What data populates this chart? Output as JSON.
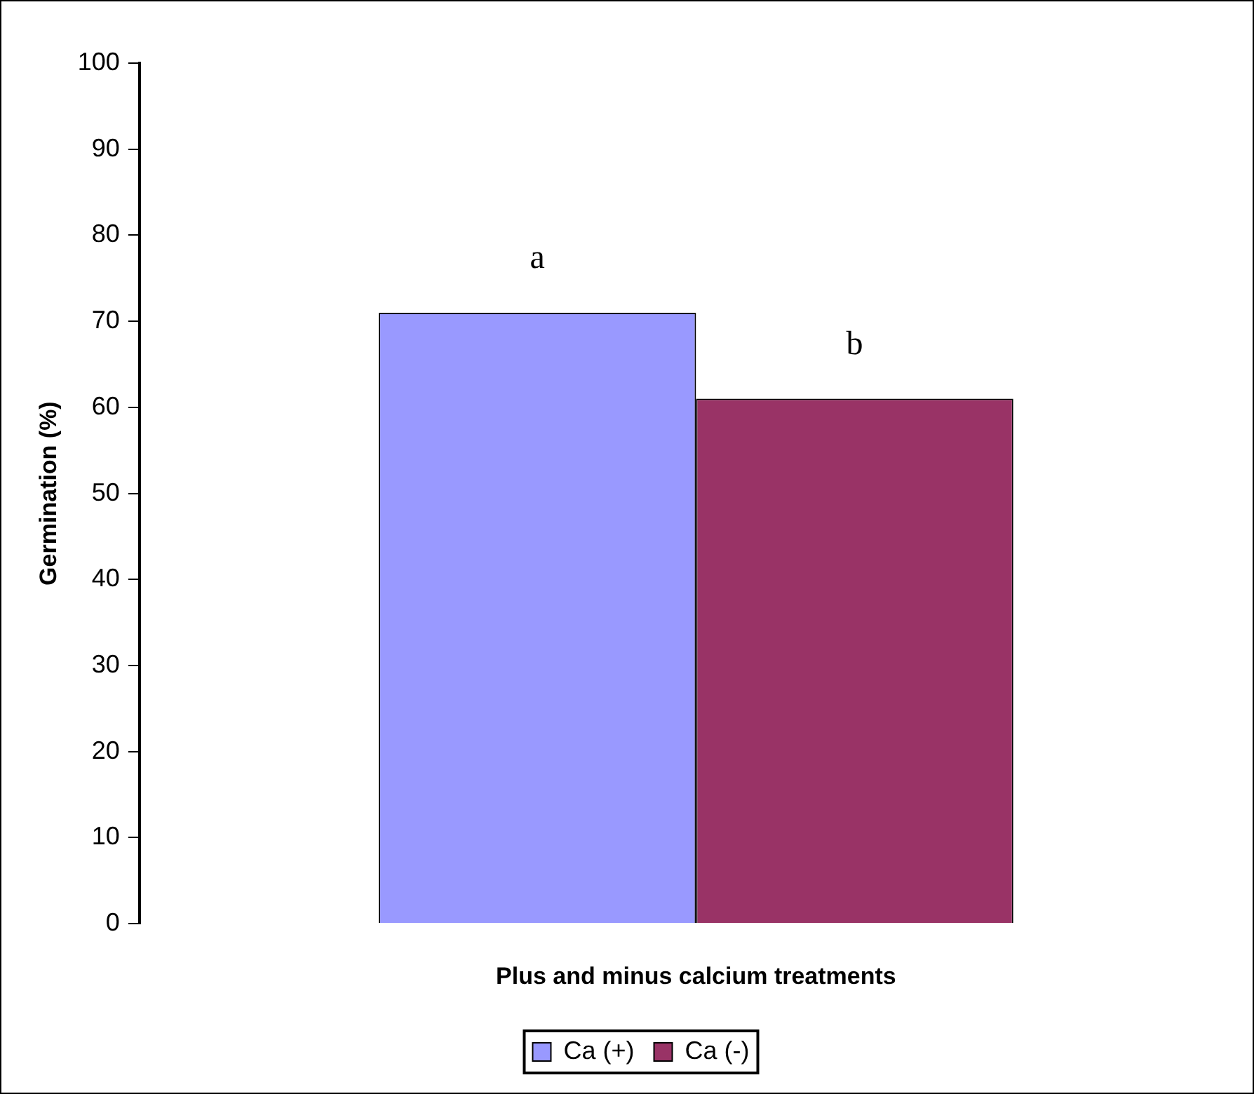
{
  "chart_data": {
    "type": "bar",
    "xlabel": "Plus and minus calcium treatments",
    "ylabel": "Germination (%)",
    "categories": [
      null
    ],
    "series": [
      {
        "name": "Ca (+)",
        "color": "#9999ff",
        "values": [
          71
        ]
      },
      {
        "name": "Ca (-)",
        "color": "#993366",
        "values": [
          61
        ]
      }
    ],
    "annotations": [
      "a",
      "b"
    ],
    "ylim": [
      0,
      100
    ],
    "yticks": [
      0,
      10,
      20,
      30,
      40,
      50,
      60,
      70,
      80,
      90,
      100
    ],
    "grid": false,
    "legend": "bottom"
  }
}
